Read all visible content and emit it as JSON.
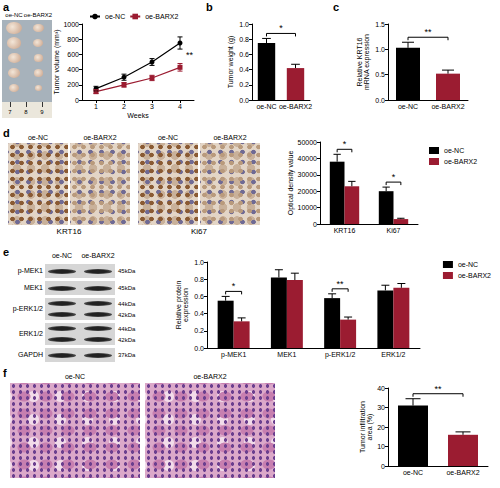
{
  "panel_labels": [
    "a",
    "b",
    "c",
    "d",
    "e",
    "f"
  ],
  "photos": {
    "a": {
      "labels": [
        "oe-NC",
        "oe-BARX2"
      ],
      "ruler": [
        "7",
        "8",
        "9"
      ]
    },
    "d": {
      "labels": [
        "oe-NC",
        "oe-BARX2",
        "oe-NC",
        "oe-BARX2"
      ],
      "captions": [
        "KRT16",
        "Ki67"
      ]
    },
    "e": {
      "lanes": [
        "oe-NC",
        "oe-BARX2"
      ],
      "rows": [
        {
          "name": "p-MEK1",
          "sizes": [
            "45kDa"
          ]
        },
        {
          "name": "MEK1",
          "sizes": [
            "45kDa"
          ]
        },
        {
          "name": "p-ERK1/2",
          "sizes": [
            "44kDa",
            "42kDa"
          ]
        },
        {
          "name": "ERK1/2",
          "sizes": [
            "44kDa",
            "42kDa"
          ]
        },
        {
          "name": "GAPDH",
          "sizes": [
            "37kDa"
          ]
        }
      ]
    },
    "f": {
      "labels": [
        "oe-NC",
        "oe-BARX2"
      ]
    }
  },
  "chart_data": [
    {
      "type": "line",
      "x": [
        1,
        2,
        3,
        4
      ],
      "xlim": [
        0.5,
        4.5
      ],
      "xticks": [
        1,
        2,
        3,
        4
      ],
      "ylim": [
        0,
        1000
      ],
      "yticks": [
        0,
        200,
        400,
        600,
        800,
        1000
      ],
      "x_label": "Weeks",
      "y_label": "Tumor volume (mm³)",
      "legend": "top",
      "grid": false,
      "series": [
        {
          "name": "oe-NC",
          "color": "#000000",
          "marker": "circle",
          "values": [
            150,
            300,
            500,
            750
          ],
          "errors": [
            30,
            40,
            45,
            80
          ]
        },
        {
          "name": "oe-BARX2",
          "color": "#9b1c31",
          "marker": "square",
          "values": [
            110,
            200,
            290,
            430
          ],
          "errors": [
            25,
            30,
            35,
            50
          ]
        }
      ],
      "annotations": [
        {
          "text": "**",
          "x": 4
        }
      ]
    },
    {
      "type": "bar",
      "categories": [
        "oe-NC",
        "oe-BARX2"
      ],
      "values": [
        0.75,
        0.42
      ],
      "errors": [
        0.06,
        0.05
      ],
      "colors": [
        "#000000",
        "#9b1c31"
      ],
      "ylim": [
        0,
        1
      ],
      "yticks": [
        {
          "value": 0,
          "label": "0.0"
        },
        {
          "value": 0.2,
          "label": "0.2"
        },
        {
          "value": 0.4,
          "label": "0.4"
        },
        {
          "value": 0.6,
          "label": "0.6"
        },
        {
          "value": 0.8,
          "label": "0.8"
        },
        {
          "value": 1,
          "label": "1.0"
        }
      ],
      "y_label": "Tumor weight (g)",
      "grid": false,
      "annotations": [
        {
          "text": "*"
        }
      ]
    },
    {
      "type": "bar",
      "categories": [
        "oe-NC",
        "oe-BARX2"
      ],
      "values": [
        1.03,
        0.52
      ],
      "errors": [
        0.11,
        0.07
      ],
      "colors": [
        "#000000",
        "#9b1c31"
      ],
      "ylim": [
        0,
        1.5
      ],
      "yticks": [
        {
          "value": 0,
          "label": "0.0"
        },
        {
          "value": 0.5,
          "label": "0.5"
        },
        {
          "value": 1,
          "label": "1.0"
        },
        {
          "value": 1.5,
          "label": "1.5"
        }
      ],
      "y_label": "Relative KRT16 mRNA expression",
      "grid": false,
      "annotations": [
        {
          "text": "**"
        }
      ]
    },
    {
      "type": "bar",
      "categories": [
        "KRT16",
        "Ki67"
      ],
      "ylim": [
        0,
        50000
      ],
      "yticks": [
        0,
        10000,
        20000,
        30000,
        40000,
        50000
      ],
      "y_label": "Optical density value",
      "legend": "right",
      "grid": false,
      "series": [
        {
          "name": "oe-NC",
          "color": "#000000",
          "values": [
            38000,
            20000
          ],
          "errors": [
            4500,
            2500
          ]
        },
        {
          "name": "oe-BARX2",
          "color": "#9b1c31",
          "values": [
            23000,
            3000
          ],
          "errors": [
            3000,
            500
          ]
        }
      ],
      "annotations": [
        {
          "text": "*",
          "category": "KRT16"
        },
        {
          "text": "*",
          "category": "Ki67"
        }
      ]
    },
    {
      "type": "bar",
      "categories": [
        "p-MEK1",
        "MEK1",
        "p-ERK1/2",
        "ERK1/2"
      ],
      "ylim": [
        0,
        1
      ],
      "yticks": [
        {
          "value": 0,
          "label": "0.0"
        },
        {
          "value": 0.2,
          "label": "0.2"
        },
        {
          "value": 0.4,
          "label": "0.4"
        },
        {
          "value": 0.6,
          "label": "0.6"
        },
        {
          "value": 0.8,
          "label": "0.8"
        },
        {
          "value": 1,
          "label": "1.0"
        }
      ],
      "y_label": "Relative protein expression",
      "legend": "top-right",
      "grid": false,
      "series": [
        {
          "name": "oe-NC",
          "color": "#000000",
          "values": [
            0.55,
            0.82,
            0.58,
            0.67
          ],
          "errors": [
            0.05,
            0.09,
            0.05,
            0.06
          ]
        },
        {
          "name": "oe-BARX2",
          "color": "#9b1c31",
          "values": [
            0.31,
            0.79,
            0.33,
            0.7
          ],
          "errors": [
            0.04,
            0.08,
            0.03,
            0.05
          ]
        }
      ],
      "annotations": [
        {
          "text": "*",
          "category": "p-MEK1"
        },
        {
          "text": "**",
          "category": "p-ERK1/2"
        }
      ]
    },
    {
      "type": "bar",
      "categories": [
        "oe-NC",
        "oe-BARX2"
      ],
      "values": [
        31,
        16
      ],
      "errors": [
        3.5,
        1.5
      ],
      "colors": [
        "#000000",
        "#9b1c31"
      ],
      "ylim": [
        0,
        40
      ],
      "yticks": [
        0,
        10,
        20,
        30,
        40
      ],
      "y_label": "Tumor infiltration area (%)",
      "grid": false,
      "annotations": [
        {
          "text": "**"
        }
      ]
    }
  ]
}
